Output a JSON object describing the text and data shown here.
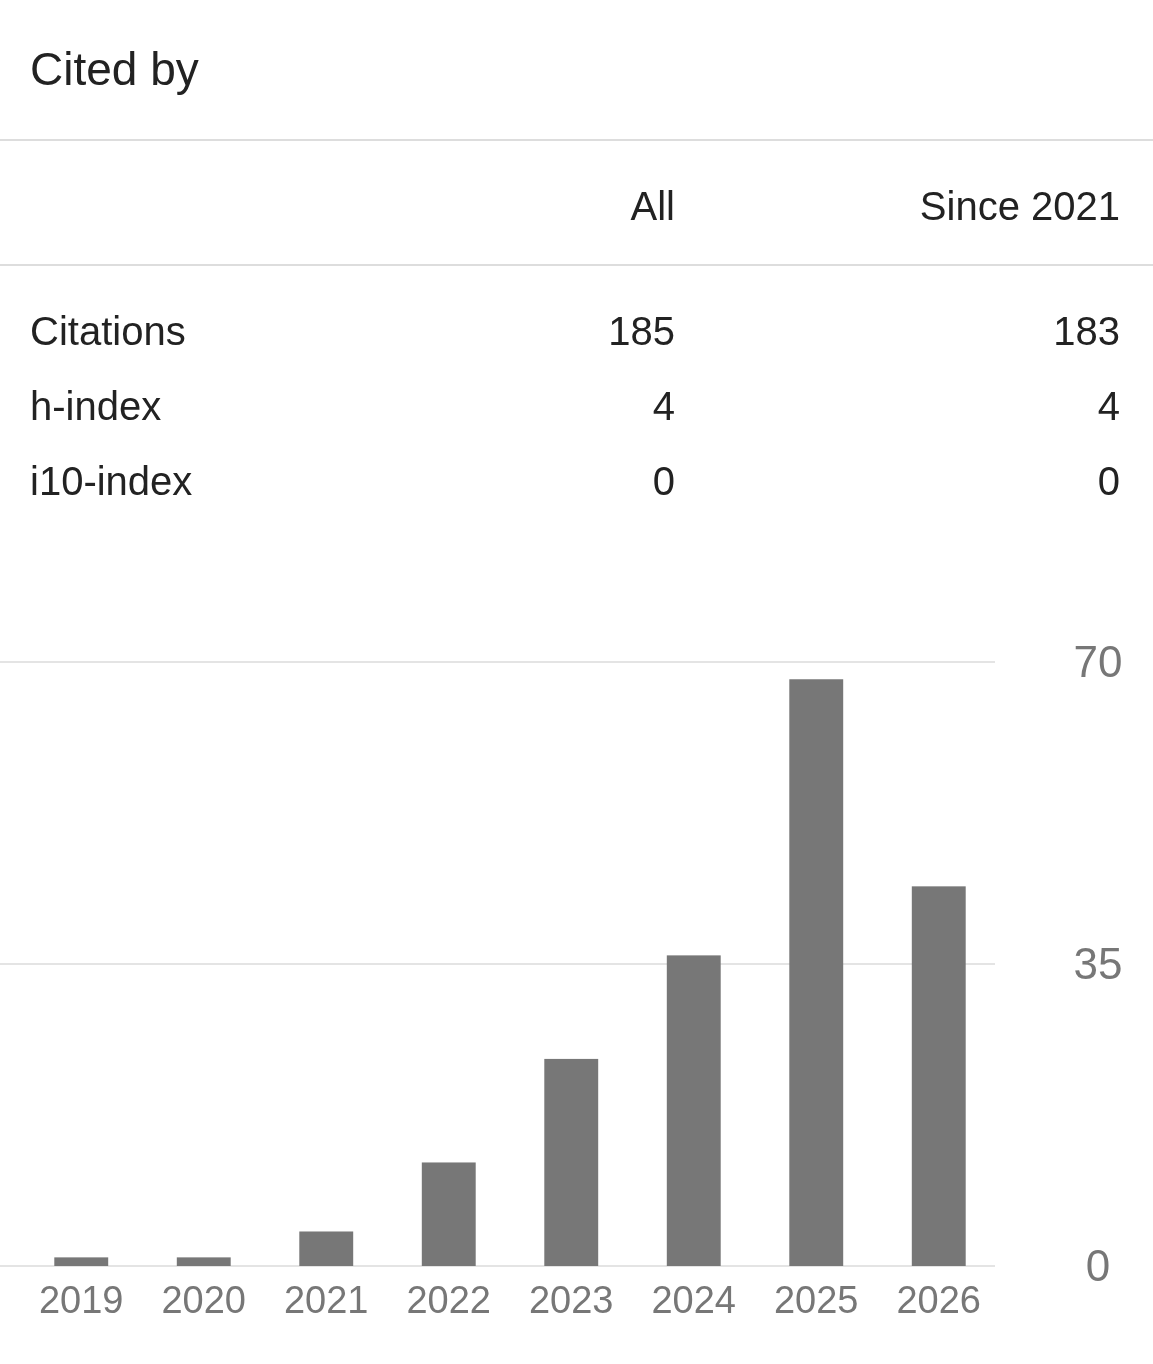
{
  "chart_data": [
    {
      "type": "other",
      "title": "Cited by",
      "categories": [
        "All",
        "Since 2021"
      ],
      "data_labels": true,
      "series": [
        {
          "name": "Citations",
          "values": [
            185,
            183
          ]
        },
        {
          "name": "h-index",
          "values": [
            4,
            4
          ]
        },
        {
          "name": "i10-index",
          "values": [
            0,
            0
          ]
        }
      ]
    },
    {
      "type": "bar",
      "categories": [
        "2019",
        "2020",
        "2021",
        "2022",
        "2023",
        "2024",
        "2025",
        "2026"
      ],
      "values": [
        1,
        1,
        4,
        12,
        24,
        36,
        68,
        44
      ],
      "color": "#777777",
      "ylim": [
        0,
        70
      ],
      "yticks": [
        0,
        35,
        70
      ],
      "grid": "y"
    }
  ]
}
